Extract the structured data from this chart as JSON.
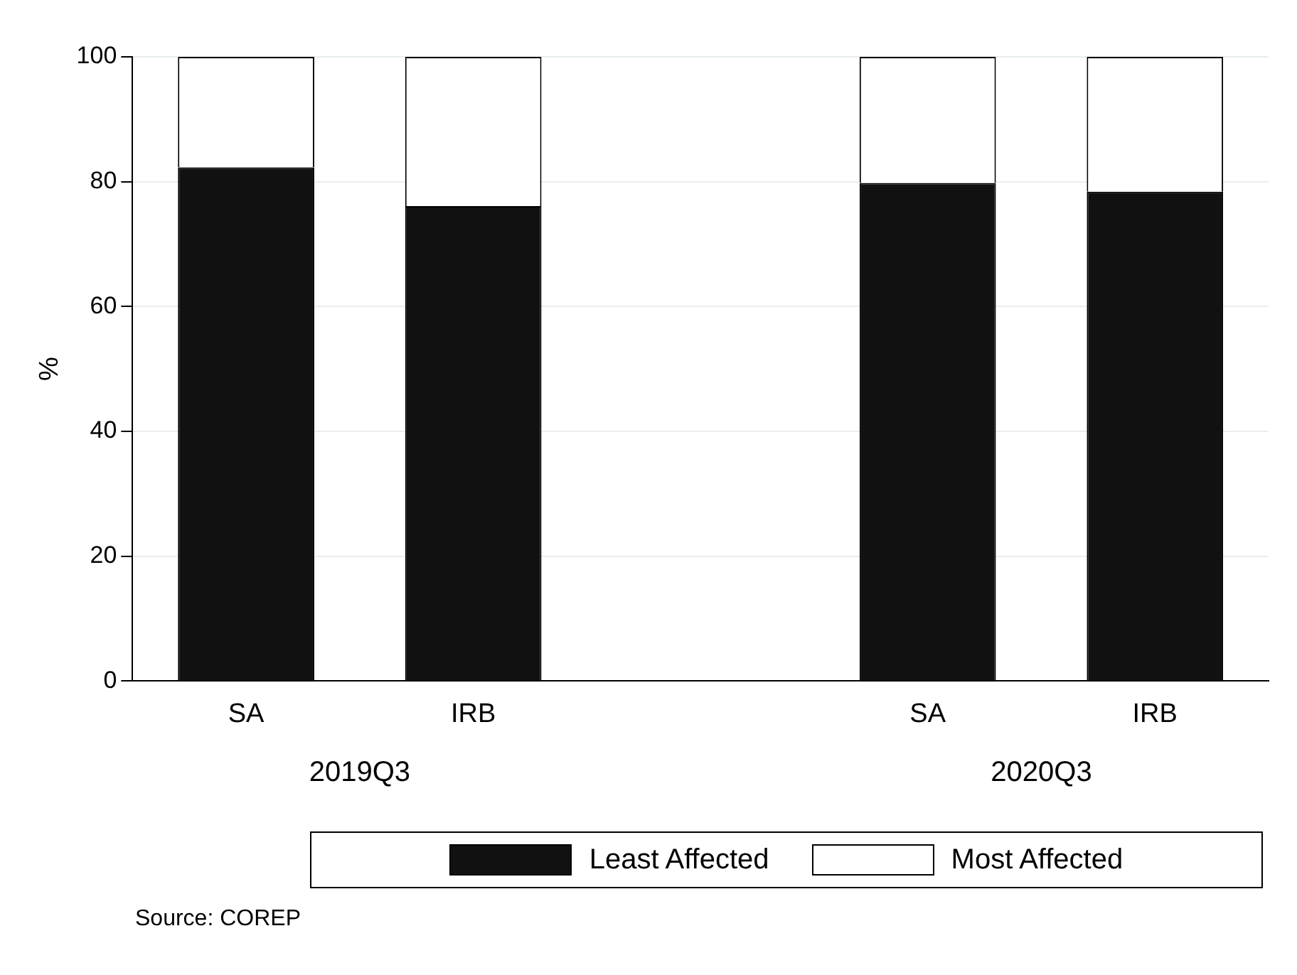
{
  "chart_data": {
    "type": "bar",
    "stacked": true,
    "ylabel": "%",
    "categories": [
      "SA",
      "IRB",
      null,
      "SA",
      "IRB"
    ],
    "series": [
      {
        "name": "Least Affected",
        "color": "#111111",
        "values": [
          82.3,
          76.1,
          null,
          79.8,
          78.4
        ]
      },
      {
        "name": "Most Affected",
        "color": "#ffffff",
        "values": [
          17.7,
          23.9,
          null,
          20.2,
          21.6
        ]
      }
    ],
    "ylim": [
      0,
      100
    ],
    "yticks": [
      0,
      20,
      40,
      60,
      80,
      100
    ],
    "grid": "y",
    "legend": "bottom",
    "annotations": [
      "2019Q3",
      "2020Q3",
      "Source: COREP"
    ]
  }
}
